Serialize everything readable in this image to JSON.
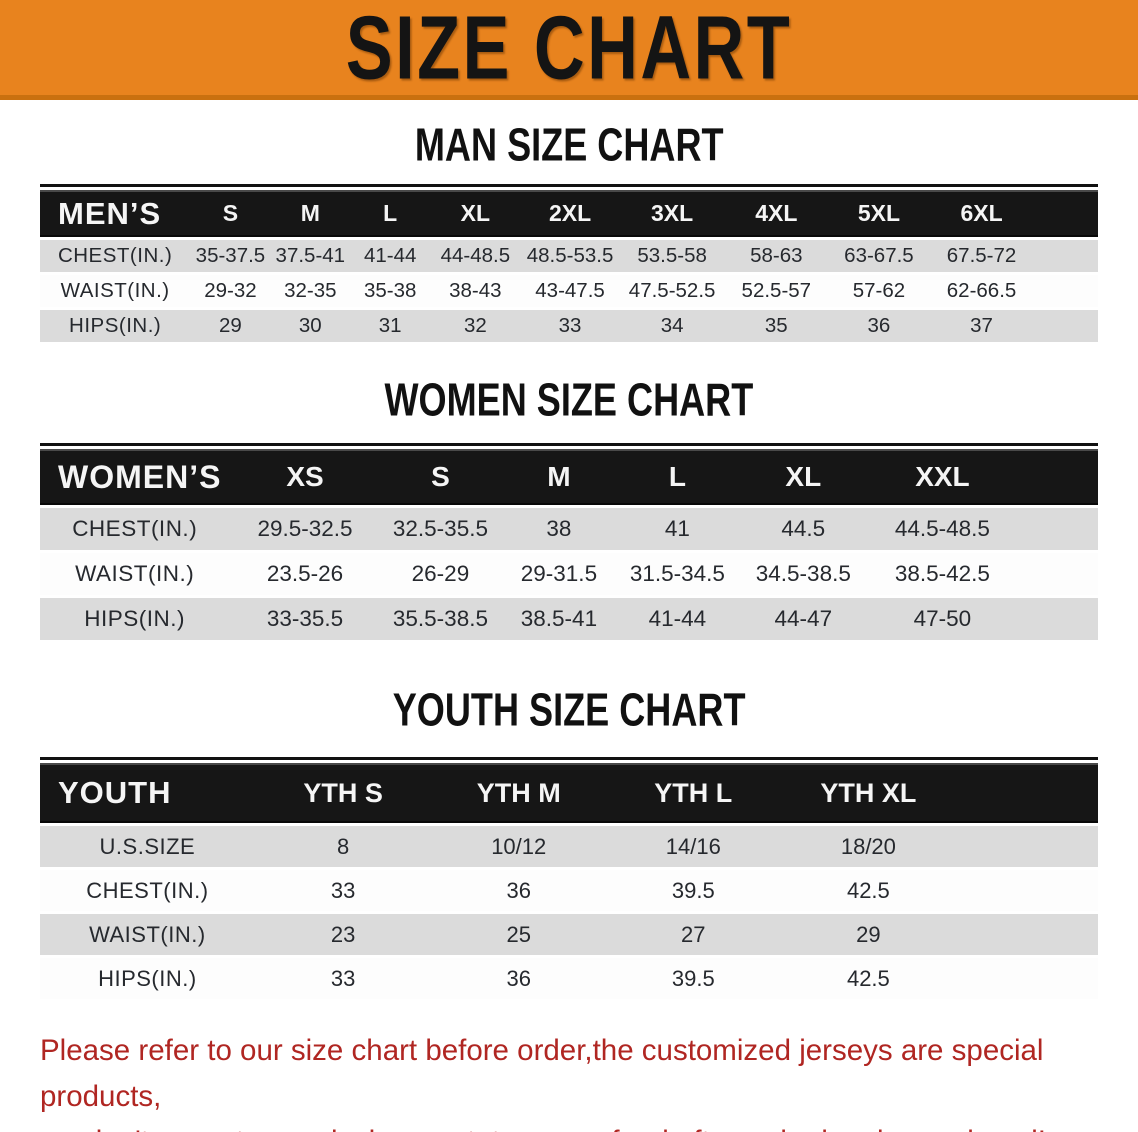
{
  "banner": {
    "title": "SIZE CHART"
  },
  "chart_data": [
    {
      "type": "table",
      "title": "MAN SIZE CHART",
      "columns": [
        "MEN’S",
        "S",
        "M",
        "L",
        "XL",
        "2XL",
        "3XL",
        "4XL",
        "5XL",
        "6XL"
      ],
      "rows": [
        {
          "label": "CHEST(IN.)",
          "values": [
            "35-37.5",
            "37.5-41",
            "41-44",
            "44-48.5",
            "48.5-53.5",
            "53.5-58",
            "58-63",
            "63-67.5",
            "67.5-72"
          ]
        },
        {
          "label": "WAIST(IN.)",
          "values": [
            "29-32",
            "32-35",
            "35-38",
            "38-43",
            "43-47.5",
            "47.5-52.5",
            "52.5-57",
            "57-62",
            "62-66.5"
          ]
        },
        {
          "label": "HIPS(IN.)",
          "values": [
            "29",
            "30",
            "31",
            "32",
            "33",
            "34",
            "35",
            "36",
            "37"
          ]
        }
      ]
    },
    {
      "type": "table",
      "title": "WOMEN SIZE CHART",
      "columns": [
        "WOMEN’S",
        "XS",
        "S",
        "M",
        "L",
        "XL",
        "XXL"
      ],
      "rows": [
        {
          "label": "CHEST(IN.)",
          "values": [
            "29.5-32.5",
            "32.5-35.5",
            "38",
            "41",
            "44.5",
            "44.5-48.5"
          ]
        },
        {
          "label": "WAIST(IN.)",
          "values": [
            "23.5-26",
            "26-29",
            "29-31.5",
            "31.5-34.5",
            "34.5-38.5",
            "38.5-42.5"
          ]
        },
        {
          "label": "HIPS(IN.)",
          "values": [
            "33-35.5",
            "35.5-38.5",
            "38.5-41",
            "41-44",
            "44-47",
            "47-50"
          ]
        }
      ]
    },
    {
      "type": "table",
      "title": "YOUTH SIZE CHART",
      "columns": [
        "YOUTH",
        "YTH S",
        "YTH M",
        "YTH L",
        "YTH XL"
      ],
      "rows": [
        {
          "label": "U.S.SIZE",
          "values": [
            "8",
            "10/12",
            "14/16",
            "18/20"
          ]
        },
        {
          "label": "CHEST(IN.)",
          "values": [
            "33",
            "36",
            "39.5",
            "42.5"
          ]
        },
        {
          "label": "WAIST(IN.)",
          "values": [
            "23",
            "25",
            "27",
            "29"
          ]
        },
        {
          "label": "HIPS(IN.)",
          "values": [
            "33",
            "36",
            "39.5",
            "42.5"
          ]
        }
      ]
    }
  ],
  "footer": {
    "line1": "Please refer to our size chart before order,the customized jerseys are special products,",
    "line2": "we don't accept cancel, change, teturn or refund after order has been placed!"
  },
  "colors": {
    "banner_orange": "#E8831E",
    "banner_edge": "#C9700F",
    "header_black": "#161616",
    "row_gray": "#DBDBDB",
    "footer_red": "#B02622"
  }
}
